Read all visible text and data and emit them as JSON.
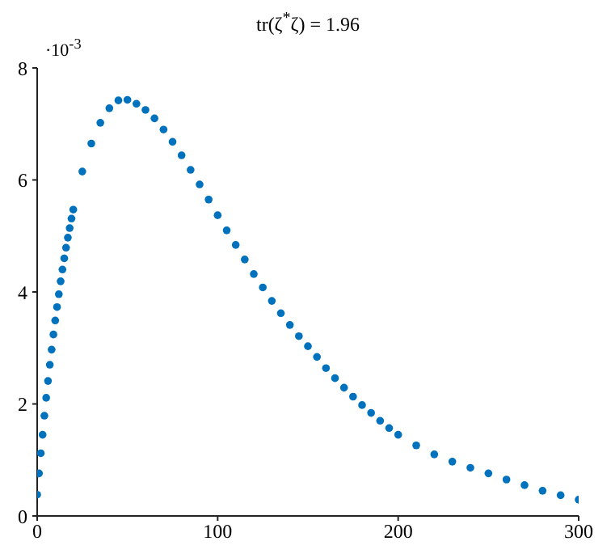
{
  "chart_data": {
    "type": "scatter",
    "title": "tr(ζ$^{*}$ζ) = 1.96",
    "annotations": [
      "·10$^{-3}$"
    ],
    "x": [
      0,
      1,
      2,
      3,
      4,
      5,
      6,
      7,
      8,
      9,
      10,
      11,
      12,
      13,
      14,
      15,
      16,
      17,
      18,
      19,
      20,
      25,
      30,
      35,
      40,
      45,
      50,
      55,
      60,
      65,
      70,
      75,
      80,
      85,
      90,
      95,
      100,
      105,
      110,
      115,
      120,
      125,
      130,
      135,
      140,
      145,
      150,
      155,
      160,
      165,
      170,
      175,
      180,
      185,
      190,
      195,
      200,
      210,
      220,
      230,
      240,
      250,
      260,
      270,
      280,
      290,
      300
    ],
    "series": [
      {
        "color": "#0072bd",
        "values": [
          0.38,
          0.76,
          1.12,
          1.45,
          1.79,
          2.11,
          2.41,
          2.7,
          2.97,
          3.24,
          3.49,
          3.73,
          3.96,
          4.19,
          4.4,
          4.6,
          4.79,
          4.97,
          5.14,
          5.31,
          5.47,
          6.15,
          6.65,
          7.02,
          7.28,
          7.42,
          7.43,
          7.36,
          7.25,
          7.1,
          6.9,
          6.68,
          6.44,
          6.18,
          5.92,
          5.65,
          5.37,
          5.1,
          4.84,
          4.58,
          4.32,
          4.08,
          3.84,
          3.62,
          3.41,
          3.21,
          3.03,
          2.84,
          2.64,
          2.46,
          2.29,
          2.13,
          1.98,
          1.84,
          1.7,
          1.57,
          1.45,
          1.26,
          1.1,
          0.97,
          0.86,
          0.76,
          0.65,
          0.55,
          0.45,
          0.37,
          0.29
        ]
      }
    ],
    "xlim": [
      0,
      300
    ],
    "xticks": [
      0,
      100,
      200,
      300
    ],
    "ylim": [
      0,
      8
    ],
    "yticks": [
      0,
      2,
      4,
      6,
      8
    ],
    "grid": false,
    "marker": "circle"
  }
}
